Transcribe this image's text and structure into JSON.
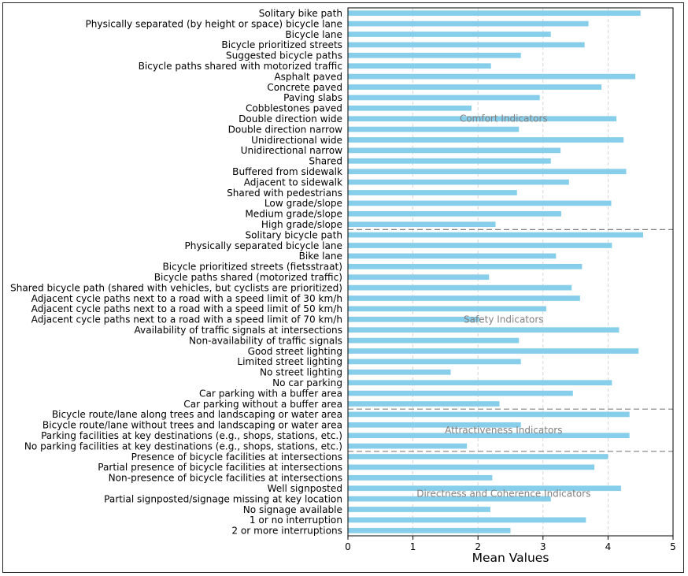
{
  "chart_data": {
    "type": "bar",
    "orientation": "horizontal",
    "xlabel": "Mean Values",
    "xlim": [
      0,
      5
    ],
    "xticks": [
      "0",
      "1",
      "2",
      "3",
      "4",
      "5"
    ],
    "grid": "vertical dashed",
    "bar_color": "#87ceeb",
    "categories": [
      "Solitary bike path",
      "Physically separated (by height or space) bicycle lane",
      "Bicycle lane",
      "Bicycle prioritized streets",
      "Suggested bicycle paths",
      "Bicycle paths shared with motorized traffic",
      "Asphalt paved",
      "Concrete paved",
      "Paving slabs",
      "Cobblestones paved",
      "Double direction wide",
      "Double direction narrow",
      "Unidirectional wide",
      "Unidirectional narrow",
      "Shared",
      "Buffered from sidewalk",
      "Adjacent to sidewalk",
      "Shared with pedestrians",
      "Low grade/slope",
      "Medium grade/slope",
      "High grade/slope",
      "Solitary bicycle path",
      "Physically separated bicycle lane",
      "Bike lane",
      "Bicycle prioritized streets (fietsstraat)",
      "Bicycle paths shared (motorized traffic)",
      "Shared bicycle path (shared with vehicles, but cyclists are prioritized)",
      "Adjacent cycle paths next to a road with a speed limit of 30 km/h",
      "Adjacent cycle paths next to a road with a speed limit of 50 km/h",
      "Adjacent cycle paths next to a road with a speed limit of 70 km/h",
      "Availability of traffic signals at intersections",
      "Non-availability of traffic signals",
      "Good street lighting",
      "Limited street lighting",
      "No street lighting",
      "No car parking",
      "Car parking with a buffer area",
      "Car parking without a buffer area",
      "Bicycle route/lane along trees and landscaping or water area",
      "Bicycle route/lane without trees and landscaping or water area",
      "Parking facilities at key destinations (e.g., shops, stations, etc.)",
      "No parking facilities at key destinations (e.g., shops, stations, etc.)",
      "Presence of bicycle facilities at intersections",
      "Partial presence of bicycle facilities at intersections",
      "Non-presence of bicycle facilities at intersections",
      "Well signposted",
      "Partial signposted/signage missing at key location",
      "No signage available",
      "1 or no interruption",
      "2 or more interruptions"
    ],
    "values": [
      4.5,
      3.7,
      3.12,
      3.64,
      2.66,
      2.2,
      4.42,
      3.9,
      2.95,
      1.9,
      4.13,
      2.63,
      4.24,
      3.27,
      3.12,
      4.28,
      3.4,
      2.6,
      4.05,
      3.28,
      2.27,
      4.54,
      4.06,
      3.2,
      3.6,
      2.17,
      3.44,
      3.57,
      3.05,
      2.02,
      4.17,
      2.63,
      4.47,
      2.66,
      1.58,
      4.06,
      3.46,
      2.33,
      4.33,
      2.66,
      4.33,
      1.83,
      4.0,
      3.79,
      2.22,
      4.2,
      3.12,
      2.19,
      3.66,
      2.5
    ],
    "groups": [
      {
        "name": "Comfort Indicators",
        "count": 21
      },
      {
        "name": "Safety Indicators",
        "count": 17
      },
      {
        "name": "Attractiveness Indicators",
        "count": 4
      },
      {
        "name": "Directness and Coherence Indicators",
        "count": 8
      }
    ],
    "group_separators": "dashed gray"
  }
}
